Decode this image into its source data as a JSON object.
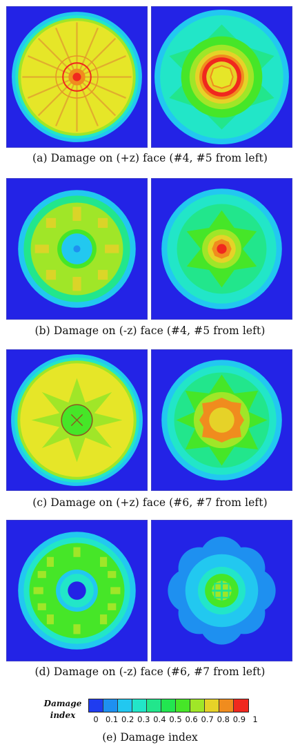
{
  "panels": [
    {
      "caption": "(a) Damage on (+z) face (#4, #5 from left)"
    },
    {
      "caption": "(b) Damage on (-z) face (#4, #5 from left)"
    },
    {
      "caption": "(c) Damage on (+z) face (#6, #7 from left)"
    },
    {
      "caption": "(d) Damage on (-z) face (#6, #7 from left)"
    }
  ],
  "legend": {
    "title_line1": "Damage",
    "title_line2": "index",
    "ticks": [
      "0",
      "0.1",
      "0.2",
      "0.3",
      "0.4",
      "0.5",
      "0.6",
      "0.7",
      "0.8",
      "0.9",
      "1"
    ],
    "colors": [
      "#1f3cf0",
      "#1e90f0",
      "#22c8f0",
      "#22e6c8",
      "#22e68c",
      "#22e650",
      "#46e628",
      "#a0e628",
      "#e6d228",
      "#f08c1e",
      "#f0281e"
    ],
    "caption": "(e) Damage index"
  }
}
